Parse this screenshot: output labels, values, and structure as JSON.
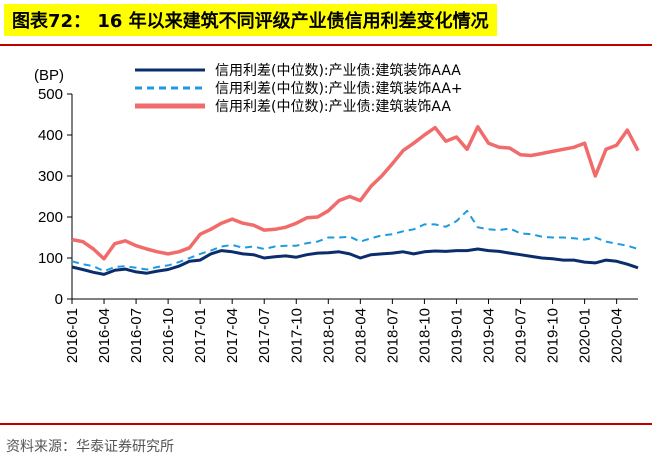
{
  "title": "图表72： 16 年以来建筑不同评级产业债信用利差变化情况",
  "source": "资料来源：华泰证券研究所",
  "chart_data": {
    "type": "line",
    "unit_label": "(BP)",
    "ylim": [
      0,
      500
    ],
    "yticks": [
      "0",
      "100",
      "200",
      "300",
      "400",
      "500"
    ],
    "xlim": [
      "2016-01",
      "2020-06"
    ],
    "xticks": [
      "2016-01",
      "2016-04",
      "2016-07",
      "2016-10",
      "2017-01",
      "2017-04",
      "2017-07",
      "2017-10",
      "2018-01",
      "2018-04",
      "2018-07",
      "2018-10",
      "2019-01",
      "2019-04",
      "2019-07",
      "2019-10",
      "2020-01",
      "2020-04"
    ],
    "legend_position": "top",
    "series": [
      {
        "name": "信用利差(中位数):产业债:建筑装饰AAA",
        "color": "#0c2d6b",
        "dash": "solid",
        "points": [
          [
            "2016-01",
            78
          ],
          [
            "2016-02",
            72
          ],
          [
            "2016-03",
            65
          ],
          [
            "2016-04",
            60
          ],
          [
            "2016-05",
            70
          ],
          [
            "2016-06",
            73
          ],
          [
            "2016-07",
            66
          ],
          [
            "2016-08",
            63
          ],
          [
            "2016-09",
            68
          ],
          [
            "2016-10",
            72
          ],
          [
            "2016-11",
            80
          ],
          [
            "2016-12",
            92
          ],
          [
            "2017-01",
            95
          ],
          [
            "2017-02",
            110
          ],
          [
            "2017-03",
            118
          ],
          [
            "2017-04",
            115
          ],
          [
            "2017-05",
            110
          ],
          [
            "2017-06",
            108
          ],
          [
            "2017-07",
            100
          ],
          [
            "2017-08",
            103
          ],
          [
            "2017-09",
            105
          ],
          [
            "2017-10",
            102
          ],
          [
            "2017-11",
            108
          ],
          [
            "2017-12",
            112
          ],
          [
            "2018-01",
            113
          ],
          [
            "2018-02",
            115
          ],
          [
            "2018-03",
            110
          ],
          [
            "2018-04",
            100
          ],
          [
            "2018-05",
            108
          ],
          [
            "2018-06",
            110
          ],
          [
            "2018-07",
            112
          ],
          [
            "2018-08",
            115
          ],
          [
            "2018-09",
            110
          ],
          [
            "2018-10",
            115
          ],
          [
            "2018-11",
            117
          ],
          [
            "2018-12",
            116
          ],
          [
            "2019-01",
            118
          ],
          [
            "2019-02",
            118
          ],
          [
            "2019-03",
            122
          ],
          [
            "2019-04",
            118
          ],
          [
            "2019-05",
            116
          ],
          [
            "2019-06",
            112
          ],
          [
            "2019-07",
            108
          ],
          [
            "2019-08",
            104
          ],
          [
            "2019-09",
            100
          ],
          [
            "2019-10",
            98
          ],
          [
            "2019-11",
            95
          ],
          [
            "2019-12",
            95
          ],
          [
            "2020-01",
            90
          ],
          [
            "2020-02",
            88
          ],
          [
            "2020-03",
            95
          ],
          [
            "2020-04",
            92
          ],
          [
            "2020-05",
            85
          ],
          [
            "2020-06",
            76
          ]
        ]
      },
      {
        "name": "信用利差(中位数):产业债:建筑装饰AA+",
        "color": "#1e9be0",
        "dash": "dashed",
        "points": [
          [
            "2016-01",
            92
          ],
          [
            "2016-02",
            85
          ],
          [
            "2016-03",
            80
          ],
          [
            "2016-04",
            68
          ],
          [
            "2016-05",
            78
          ],
          [
            "2016-06",
            80
          ],
          [
            "2016-07",
            76
          ],
          [
            "2016-08",
            72
          ],
          [
            "2016-09",
            78
          ],
          [
            "2016-10",
            82
          ],
          [
            "2016-11",
            90
          ],
          [
            "2016-12",
            100
          ],
          [
            "2017-01",
            110
          ],
          [
            "2017-02",
            118
          ],
          [
            "2017-03",
            128
          ],
          [
            "2017-04",
            132
          ],
          [
            "2017-05",
            125
          ],
          [
            "2017-06",
            128
          ],
          [
            "2017-07",
            122
          ],
          [
            "2017-08",
            128
          ],
          [
            "2017-09",
            130
          ],
          [
            "2017-10",
            130
          ],
          [
            "2017-11",
            136
          ],
          [
            "2017-12",
            140
          ],
          [
            "2018-01",
            150
          ],
          [
            "2018-02",
            150
          ],
          [
            "2018-03",
            152
          ],
          [
            "2018-04",
            140
          ],
          [
            "2018-05",
            148
          ],
          [
            "2018-06",
            155
          ],
          [
            "2018-07",
            158
          ],
          [
            "2018-08",
            165
          ],
          [
            "2018-09",
            170
          ],
          [
            "2018-10",
            182
          ],
          [
            "2018-11",
            182
          ],
          [
            "2018-12",
            176
          ],
          [
            "2019-01",
            190
          ],
          [
            "2019-02",
            215
          ],
          [
            "2019-03",
            175
          ],
          [
            "2019-04",
            170
          ],
          [
            "2019-05",
            168
          ],
          [
            "2019-06",
            172
          ],
          [
            "2019-07",
            160
          ],
          [
            "2019-08",
            158
          ],
          [
            "2019-09",
            152
          ],
          [
            "2019-10",
            150
          ],
          [
            "2019-11",
            150
          ],
          [
            "2019-12",
            148
          ],
          [
            "2020-01",
            145
          ],
          [
            "2020-02",
            150
          ],
          [
            "2020-03",
            140
          ],
          [
            "2020-04",
            135
          ],
          [
            "2020-05",
            130
          ],
          [
            "2020-06",
            122
          ]
        ]
      },
      {
        "name": "信用利差(中位数):产业债:建筑装饰AA",
        "color": "#f26b6b",
        "dash": "solid",
        "points": [
          [
            "2016-01",
            145
          ],
          [
            "2016-02",
            140
          ],
          [
            "2016-03",
            122
          ],
          [
            "2016-04",
            98
          ],
          [
            "2016-05",
            135
          ],
          [
            "2016-06",
            142
          ],
          [
            "2016-07",
            130
          ],
          [
            "2016-08",
            122
          ],
          [
            "2016-09",
            115
          ],
          [
            "2016-10",
            110
          ],
          [
            "2016-11",
            115
          ],
          [
            "2016-12",
            125
          ],
          [
            "2017-01",
            158
          ],
          [
            "2017-02",
            170
          ],
          [
            "2017-03",
            185
          ],
          [
            "2017-04",
            195
          ],
          [
            "2017-05",
            185
          ],
          [
            "2017-06",
            180
          ],
          [
            "2017-07",
            168
          ],
          [
            "2017-08",
            170
          ],
          [
            "2017-09",
            175
          ],
          [
            "2017-10",
            185
          ],
          [
            "2017-11",
            198
          ],
          [
            "2017-12",
            200
          ],
          [
            "2018-01",
            215
          ],
          [
            "2018-02",
            240
          ],
          [
            "2018-03",
            250
          ],
          [
            "2018-04",
            240
          ],
          [
            "2018-05",
            275
          ],
          [
            "2018-06",
            300
          ],
          [
            "2018-07",
            330
          ],
          [
            "2018-08",
            362
          ],
          [
            "2018-09",
            380
          ],
          [
            "2018-10",
            400
          ],
          [
            "2018-11",
            418
          ],
          [
            "2018-12",
            385
          ],
          [
            "2019-01",
            395
          ],
          [
            "2019-02",
            365
          ],
          [
            "2019-03",
            420
          ],
          [
            "2019-04",
            380
          ],
          [
            "2019-05",
            370
          ],
          [
            "2019-06",
            368
          ],
          [
            "2019-07",
            352
          ],
          [
            "2019-08",
            350
          ],
          [
            "2019-09",
            355
          ],
          [
            "2019-10",
            360
          ],
          [
            "2019-11",
            365
          ],
          [
            "2019-12",
            370
          ],
          [
            "2020-01",
            380
          ],
          [
            "2020-02",
            300
          ],
          [
            "2020-03",
            365
          ],
          [
            "2020-04",
            375
          ],
          [
            "2020-05",
            412
          ],
          [
            "2020-06",
            362
          ]
        ]
      }
    ]
  }
}
